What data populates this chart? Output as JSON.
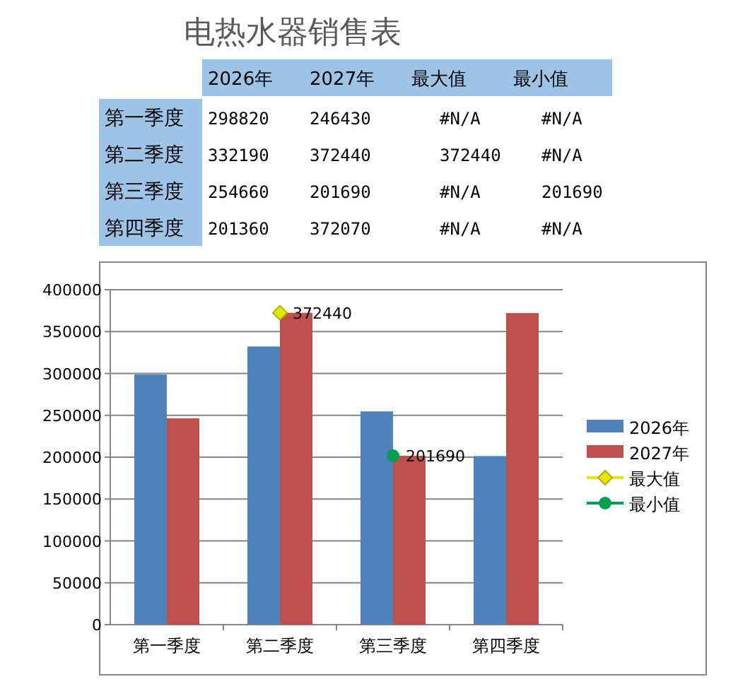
{
  "chart_data": [
    {
      "type": "other",
      "title": "电热水器销售表",
      "categories": [
        "2026年",
        "2027年",
        "最大值",
        "最小值"
      ],
      "y_categories": [
        "第一季度",
        "第二季度",
        "第三季度",
        "第四季度"
      ],
      "cell_labels": [
        [
          "298820",
          "246430",
          "#N/A",
          "#N/A"
        ],
        [
          "332190",
          "372440",
          "372440",
          "#N/A"
        ],
        [
          "254660",
          "201690",
          "#N/A",
          "201690"
        ],
        [
          "201360",
          "372070",
          "#N/A",
          "#N/A"
        ]
      ]
    },
    {
      "type": "bar",
      "categories": [
        "第一季度",
        "第二季度",
        "第三季度",
        "第四季度"
      ],
      "series": [
        {
          "name": "2026年",
          "color": "#4f81bd",
          "values": [
            298820,
            332190,
            254660,
            201360
          ]
        },
        {
          "name": "2027年",
          "color": "#c0504d",
          "values": [
            246430,
            372440,
            201690,
            372070
          ]
        },
        {
          "name": "最大值",
          "type": "line",
          "color": "#e6e600",
          "marker": "diamond",
          "values": [
            null,
            372440,
            null,
            null
          ],
          "value_labels": [
            null,
            "372440",
            null,
            null
          ]
        },
        {
          "name": "最小值",
          "type": "line",
          "color": "#00a050",
          "marker": "circle",
          "values": [
            null,
            null,
            201690,
            null
          ],
          "value_labels": [
            null,
            null,
            "201690",
            null
          ]
        }
      ],
      "ylim": [
        0,
        400000
      ],
      "yticks": [
        0,
        50000,
        100000,
        150000,
        200000,
        250000,
        300000,
        350000,
        400000
      ],
      "grid": "y",
      "legend": "right"
    }
  ]
}
